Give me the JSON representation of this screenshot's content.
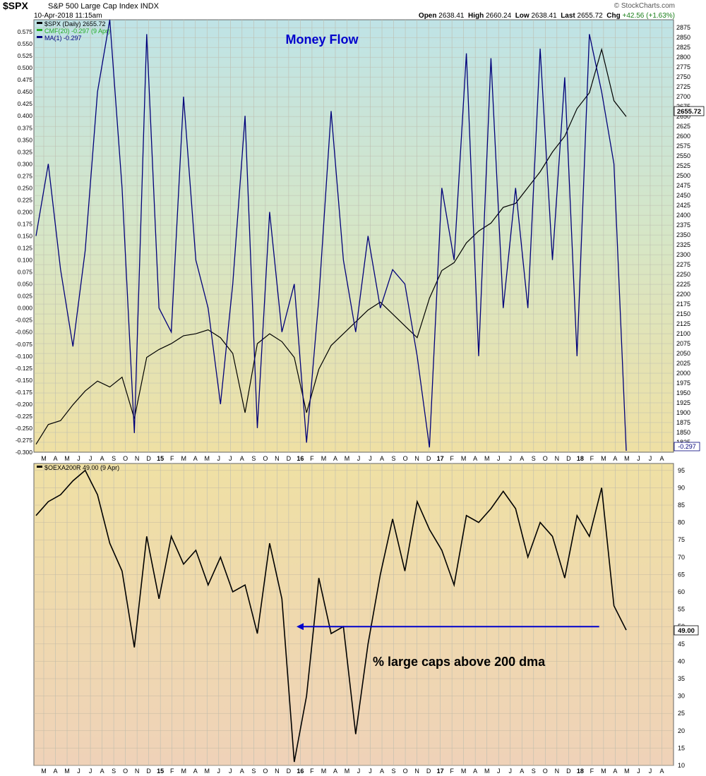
{
  "header": {
    "ticker": "$SPX",
    "name": "S&P 500 Large Cap Index",
    "exchange": "INDX",
    "date": "10-Apr-2018 11:15am",
    "brand": "© StockCharts.com",
    "open_label": "Open",
    "open": "2638.41",
    "high_label": "High",
    "high": "2660.24",
    "low_label": "Low",
    "low": "2638.41",
    "last_label": "Last",
    "last": "2655.72",
    "chg_label": "Chg",
    "chg": "+42.56 (+1.63%)",
    "chg_color": "#1a7f1a"
  },
  "chart_data": [
    {
      "type": "line",
      "panel": "top",
      "title": "Money Flow",
      "title_color": "#0000cc",
      "legend": [
        {
          "text": "$SPX (Daily) 2655.72",
          "color": "#000000"
        },
        {
          "text": "CMF(20) -0.297 (9 Apr)",
          "color": "#22aa22"
        },
        {
          "text": "MA(1) -0.297",
          "color": "#000080"
        }
      ],
      "x_tick_labels": [
        "M",
        "A",
        "M",
        "J",
        "J",
        "A",
        "S",
        "O",
        "N",
        "D",
        "15",
        "F",
        "M",
        "A",
        "M",
        "J",
        "J",
        "A",
        "S",
        "O",
        "N",
        "D",
        "16",
        "F",
        "M",
        "A",
        "M",
        "J",
        "J",
        "A",
        "S",
        "O",
        "N",
        "D",
        "17",
        "F",
        "M",
        "A",
        "M",
        "J",
        "J",
        "A",
        "S",
        "O",
        "N",
        "D",
        "18",
        "F",
        "M",
        "A",
        "M",
        "J",
        "J",
        "A"
      ],
      "left_axis": {
        "min": -0.3,
        "max": 0.6,
        "ticks": [
          "0.575",
          "0.550",
          "0.525",
          "0.500",
          "0.475",
          "0.450",
          "0.425",
          "0.400",
          "0.375",
          "0.350",
          "0.325",
          "0.300",
          "0.275",
          "0.250",
          "0.225",
          "0.200",
          "0.175",
          "0.150",
          "0.125",
          "0.100",
          "0.075",
          "0.050",
          "0.025",
          "0.000",
          "-0.025",
          "-0.050",
          "-0.075",
          "-0.100",
          "-0.125",
          "-0.150",
          "-0.175",
          "-0.200",
          "-0.225",
          "-0.250",
          "-0.275",
          "-0.300"
        ]
      },
      "right_axis": {
        "min": 1800,
        "max": 2895,
        "ticks": [
          "2875",
          "2850",
          "2825",
          "2800",
          "2775",
          "2750",
          "2725",
          "2700",
          "2675",
          "2650",
          "2625",
          "2600",
          "2575",
          "2550",
          "2525",
          "2500",
          "2475",
          "2450",
          "2425",
          "2400",
          "2375",
          "2350",
          "2325",
          "2300",
          "2275",
          "2250",
          "2225",
          "2200",
          "2175",
          "2150",
          "2125",
          "2100",
          "2075",
          "2050",
          "2025",
          "2000",
          "1975",
          "1950",
          "1925",
          "1900",
          "1875",
          "1850",
          "1825"
        ]
      },
      "last_value_labels": {
        "price": "2655.72",
        "cmf": "-0.297"
      },
      "series": [
        {
          "name": "$SPX",
          "axis": "right",
          "color": "#000000",
          "x": [
            0,
            1,
            2,
            3,
            4,
            5,
            6,
            7,
            8,
            9,
            10,
            11,
            12,
            13,
            14,
            15,
            16,
            17,
            18,
            19,
            20,
            21,
            22,
            23,
            24,
            25,
            26,
            27,
            28,
            29,
            30,
            31,
            32,
            33,
            34,
            35,
            36,
            37,
            38,
            39,
            40,
            41,
            42,
            43,
            44,
            45,
            46,
            47,
            48
          ],
          "values": [
            1820,
            1870,
            1880,
            1920,
            1955,
            1980,
            1965,
            1990,
            1885,
            2040,
            2060,
            2075,
            2095,
            2100,
            2110,
            2090,
            2050,
            1900,
            2075,
            2100,
            2080,
            2040,
            1900,
            2010,
            2070,
            2100,
            2130,
            2160,
            2180,
            2150,
            2120,
            2090,
            2190,
            2260,
            2280,
            2330,
            2360,
            2380,
            2420,
            2430,
            2470,
            2510,
            2560,
            2600,
            2670,
            2710,
            2820,
            2690,
            2650
          ]
        },
        {
          "name": "CMF(20)",
          "axis": "left",
          "color": "#00007a",
          "x": [
            0,
            1,
            2,
            3,
            4,
            5,
            6,
            7,
            8,
            9,
            10,
            11,
            12,
            13,
            14,
            15,
            16,
            17,
            18,
            19,
            20,
            21,
            22,
            23,
            24,
            25,
            26,
            27,
            28,
            29,
            30,
            31,
            32,
            33,
            34,
            35,
            36,
            37,
            38,
            39,
            40,
            41,
            42,
            43,
            44,
            45,
            46,
            47,
            48
          ],
          "values": [
            0.15,
            0.3,
            0.08,
            -0.08,
            0.12,
            0.45,
            0.6,
            0.25,
            -0.26,
            0.57,
            0.0,
            -0.05,
            0.44,
            0.1,
            0.0,
            -0.2,
            0.05,
            0.4,
            -0.25,
            0.2,
            -0.05,
            0.05,
            -0.28,
            0.02,
            0.41,
            0.1,
            -0.05,
            0.15,
            0.0,
            0.08,
            0.05,
            -0.1,
            -0.29,
            0.25,
            0.1,
            0.53,
            -0.1,
            0.52,
            0.0,
            0.25,
            0.0,
            0.54,
            0.1,
            0.48,
            -0.1,
            0.57,
            0.45,
            0.3,
            -0.297
          ]
        }
      ]
    },
    {
      "type": "line",
      "panel": "bottom",
      "title": "% large caps above 200 dma",
      "legend": [
        {
          "text": "$OEXA200R 49.00 (9 Apr)",
          "color": "#000000"
        }
      ],
      "x_tick_labels": [
        "M",
        "A",
        "M",
        "J",
        "J",
        "A",
        "S",
        "O",
        "N",
        "D",
        "15",
        "F",
        "M",
        "A",
        "M",
        "J",
        "J",
        "A",
        "S",
        "O",
        "N",
        "D",
        "16",
        "F",
        "M",
        "A",
        "M",
        "J",
        "J",
        "A",
        "S",
        "O",
        "N",
        "D",
        "17",
        "F",
        "M",
        "A",
        "M",
        "J",
        "J",
        "A",
        "S",
        "O",
        "N",
        "D",
        "18",
        "F",
        "M",
        "A",
        "M",
        "J",
        "J",
        "A"
      ],
      "right_axis": {
        "min": 10,
        "max": 97,
        "ticks": [
          "95",
          "90",
          "85",
          "80",
          "75",
          "70",
          "65",
          "60",
          "55",
          "50",
          "45",
          "40",
          "35",
          "30",
          "25",
          "20",
          "15",
          "10"
        ]
      },
      "last_value_label": "49.00",
      "series": [
        {
          "name": "$OEXA200R",
          "color": "#000000",
          "x": [
            0,
            1,
            2,
            3,
            4,
            5,
            6,
            7,
            8,
            9,
            10,
            11,
            12,
            13,
            14,
            15,
            16,
            17,
            18,
            19,
            20,
            21,
            22,
            23,
            24,
            25,
            26,
            27,
            28,
            29,
            30,
            31,
            32,
            33,
            34,
            35,
            36,
            37,
            38,
            39,
            40,
            41,
            42,
            43,
            44,
            45,
            46,
            47,
            48
          ],
          "values": [
            82,
            86,
            88,
            92,
            95,
            88,
            74,
            66,
            44,
            76,
            58,
            76,
            68,
            72,
            62,
            70,
            60,
            62,
            48,
            74,
            58,
            11,
            30,
            64,
            48,
            50,
            19,
            45,
            65,
            81,
            66,
            86,
            78,
            72,
            62,
            82,
            80,
            84,
            89,
            84,
            70,
            80,
            76,
            64,
            82,
            76,
            90,
            56,
            49
          ]
        }
      ],
      "annotation_arrow": {
        "from_x": 45.8,
        "to_x": 21.3,
        "y": 50,
        "color": "#0000cc"
      }
    }
  ]
}
